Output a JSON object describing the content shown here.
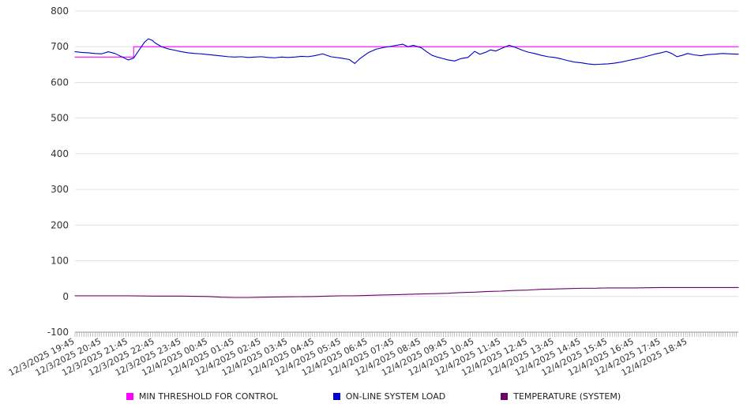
{
  "chart_data": {
    "type": "line",
    "title": "",
    "xlabel": "",
    "ylabel": "",
    "grid": true,
    "legend_position": "bottom",
    "ylim": [
      -100,
      800
    ],
    "y_ticks": [
      800,
      700,
      600,
      500,
      400,
      300,
      200,
      100,
      0,
      -100
    ],
    "x_tick_labels": [
      "12/3/2025 19:45",
      "12/3/2025 20:45",
      "12/3/2025 21:45",
      "12/3/2025 22:45",
      "12/3/2025 23:45",
      "12/4/2025 00:45",
      "12/4/2025 01:45",
      "12/4/2025 02:45",
      "12/4/2025 03:45",
      "12/4/2025 04:45",
      "12/4/2025 05:45",
      "12/4/2025 06:45",
      "12/4/2025 07:45",
      "12/4/2025 08:45",
      "12/4/2025 09:45",
      "12/4/2025 10:45",
      "12/4/2025 11:45",
      "12/4/2025 12:45",
      "12/4/2025 13:45",
      "12/4/2025 14:45",
      "12/4/2025 15:45",
      "12/4/2025 16:45",
      "12/4/2025 17:45",
      "12/4/2025 18:45"
    ],
    "x_hours_total": 24.9,
    "minor_ticks_per_hour": 12,
    "series": [
      {
        "name": "MIN THRESHOLD FOR CONTROL",
        "color": "#ff00ff",
        "points": [
          [
            0,
            671
          ],
          [
            2.2,
            671
          ],
          [
            2.2,
            700
          ],
          [
            24.9,
            700
          ]
        ]
      },
      {
        "name": "ON-LINE SYSTEM LOAD",
        "color": "#0000cc",
        "points": [
          [
            0,
            686
          ],
          [
            0.25,
            684
          ],
          [
            0.5,
            683
          ],
          [
            0.75,
            681
          ],
          [
            1,
            680
          ],
          [
            1.25,
            686
          ],
          [
            1.5,
            681
          ],
          [
            1.75,
            672
          ],
          [
            2,
            663
          ],
          [
            2.2,
            668
          ],
          [
            2.4,
            690
          ],
          [
            2.6,
            712
          ],
          [
            2.75,
            722
          ],
          [
            2.9,
            718
          ],
          [
            3,
            711
          ],
          [
            3.25,
            700
          ],
          [
            3.5,
            694
          ],
          [
            3.75,
            690
          ],
          [
            4,
            686
          ],
          [
            4.25,
            683
          ],
          [
            4.5,
            681
          ],
          [
            4.75,
            680
          ],
          [
            5,
            678
          ],
          [
            5.25,
            676
          ],
          [
            5.5,
            674
          ],
          [
            5.75,
            672
          ],
          [
            6,
            671
          ],
          [
            6.25,
            672
          ],
          [
            6.5,
            670
          ],
          [
            6.75,
            671
          ],
          [
            7,
            672
          ],
          [
            7.25,
            670
          ],
          [
            7.5,
            669
          ],
          [
            7.75,
            671
          ],
          [
            8,
            670
          ],
          [
            8.25,
            671
          ],
          [
            8.5,
            673
          ],
          [
            8.75,
            672
          ],
          [
            9,
            675
          ],
          [
            9.3,
            680
          ],
          [
            9.6,
            672
          ],
          [
            10,
            668
          ],
          [
            10.3,
            664
          ],
          [
            10.5,
            653
          ],
          [
            10.7,
            667
          ],
          [
            11,
            683
          ],
          [
            11.3,
            693
          ],
          [
            11.6,
            698
          ],
          [
            12,
            703
          ],
          [
            12.3,
            707
          ],
          [
            12.5,
            700
          ],
          [
            12.7,
            704
          ],
          [
            13,
            697
          ],
          [
            13.2,
            686
          ],
          [
            13.4,
            676
          ],
          [
            13.6,
            671
          ],
          [
            13.8,
            667
          ],
          [
            14,
            663
          ],
          [
            14.25,
            660
          ],
          [
            14.5,
            667
          ],
          [
            14.75,
            670
          ],
          [
            15,
            687
          ],
          [
            15.2,
            679
          ],
          [
            15.4,
            684
          ],
          [
            15.6,
            691
          ],
          [
            15.8,
            688
          ],
          [
            16,
            695
          ],
          [
            16.3,
            704
          ],
          [
            16.5,
            699
          ],
          [
            16.8,
            690
          ],
          [
            17,
            685
          ],
          [
            17.25,
            681
          ],
          [
            17.5,
            676
          ],
          [
            17.75,
            672
          ],
          [
            18,
            670
          ],
          [
            18.25,
            666
          ],
          [
            18.5,
            661
          ],
          [
            18.75,
            657
          ],
          [
            19,
            655
          ],
          [
            19.25,
            652
          ],
          [
            19.5,
            650
          ],
          [
            19.75,
            651
          ],
          [
            20,
            652
          ],
          [
            20.25,
            654
          ],
          [
            20.5,
            657
          ],
          [
            20.75,
            661
          ],
          [
            21,
            665
          ],
          [
            21.25,
            669
          ],
          [
            21.5,
            674
          ],
          [
            21.75,
            679
          ],
          [
            22,
            683
          ],
          [
            22.2,
            687
          ],
          [
            22.4,
            681
          ],
          [
            22.6,
            672
          ],
          [
            22.8,
            676
          ],
          [
            23,
            681
          ],
          [
            23.25,
            677
          ],
          [
            23.5,
            675
          ],
          [
            23.75,
            678
          ],
          [
            24,
            679
          ],
          [
            24.3,
            681
          ],
          [
            24.6,
            680
          ],
          [
            24.9,
            679
          ]
        ]
      },
      {
        "name": "TEMPERATURE (SYSTEM)",
        "color": "#6a006a",
        "points": [
          [
            0,
            2
          ],
          [
            1,
            2
          ],
          [
            2,
            2
          ],
          [
            3,
            1
          ],
          [
            4,
            1
          ],
          [
            5,
            0
          ],
          [
            5.5,
            -2
          ],
          [
            6,
            -3
          ],
          [
            6.5,
            -3
          ],
          [
            7,
            -2
          ],
          [
            8,
            -1
          ],
          [
            9,
            0
          ],
          [
            9.5,
            1
          ],
          [
            10,
            2
          ],
          [
            10.5,
            2
          ],
          [
            11,
            3
          ],
          [
            11.5,
            4
          ],
          [
            12,
            5
          ],
          [
            12.5,
            6
          ],
          [
            13,
            7
          ],
          [
            13.5,
            8
          ],
          [
            14,
            9
          ],
          [
            14.5,
            11
          ],
          [
            15,
            12
          ],
          [
            15.5,
            14
          ],
          [
            16,
            15
          ],
          [
            16.5,
            17
          ],
          [
            17,
            18
          ],
          [
            17.5,
            20
          ],
          [
            18,
            21
          ],
          [
            18.5,
            22
          ],
          [
            19,
            23
          ],
          [
            19.5,
            23
          ],
          [
            20,
            24
          ],
          [
            21,
            24
          ],
          [
            22,
            25
          ],
          [
            23,
            25
          ],
          [
            24,
            25
          ],
          [
            24.9,
            25
          ]
        ]
      }
    ],
    "colors": {
      "gridline": "#e0e0e0",
      "axis": "#999999",
      "tick": "#888888",
      "label_text": "#333333",
      "legend_text": "#222222"
    }
  }
}
